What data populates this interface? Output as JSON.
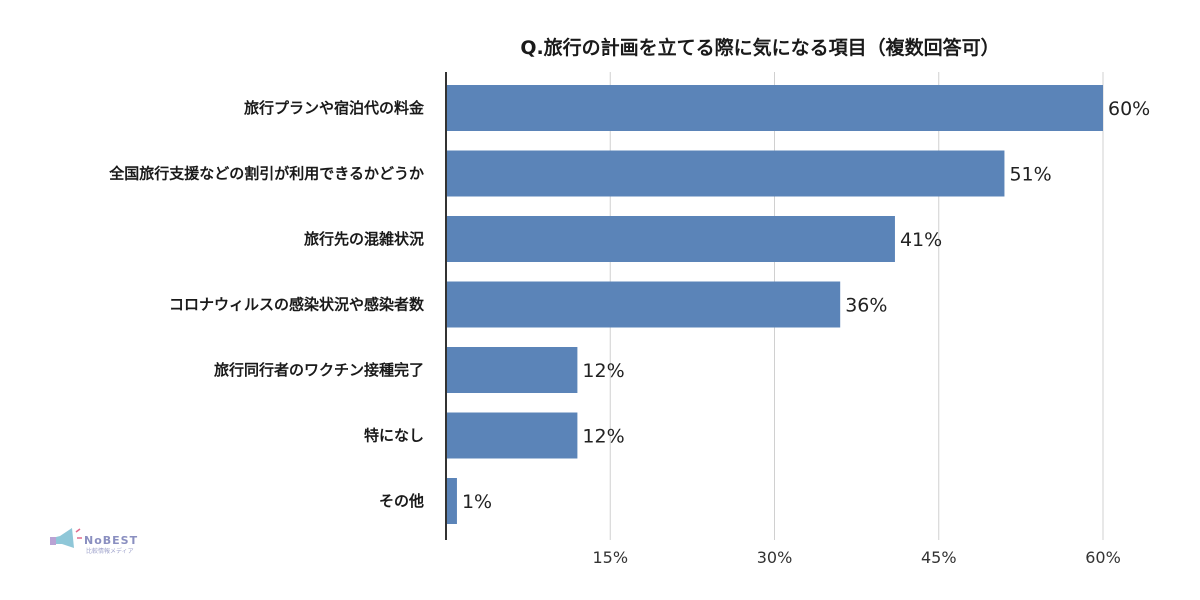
{
  "logo": {
    "name": "NoBEST",
    "tagline": "比較情報メディア"
  },
  "chart_data": {
    "type": "bar",
    "orientation": "horizontal",
    "title": "Q.旅行の計画を立てる際に気になる項目（複数回答可）",
    "categories": [
      "旅行プランや宿泊代の料金",
      "全国旅行支援などの割引が利用できるかどうか",
      "旅行先の混雑状況",
      "コロナウィルスの感染状況や感染者数",
      "旅行同行者のワクチン接種完了",
      "特になし",
      "その他"
    ],
    "values": [
      60,
      51,
      41,
      36,
      12,
      12,
      1
    ],
    "value_labels": [
      "60%",
      "51%",
      "41%",
      "36%",
      "12%",
      "12%",
      "1%"
    ],
    "xlim": [
      0,
      60
    ],
    "xticks": [
      15,
      30,
      45,
      60
    ],
    "xtick_labels": [
      "15%",
      "30%",
      "45%",
      "60%"
    ],
    "grid": true,
    "bar_color": "#5b84b8",
    "xlabel": "",
    "ylabel": ""
  }
}
